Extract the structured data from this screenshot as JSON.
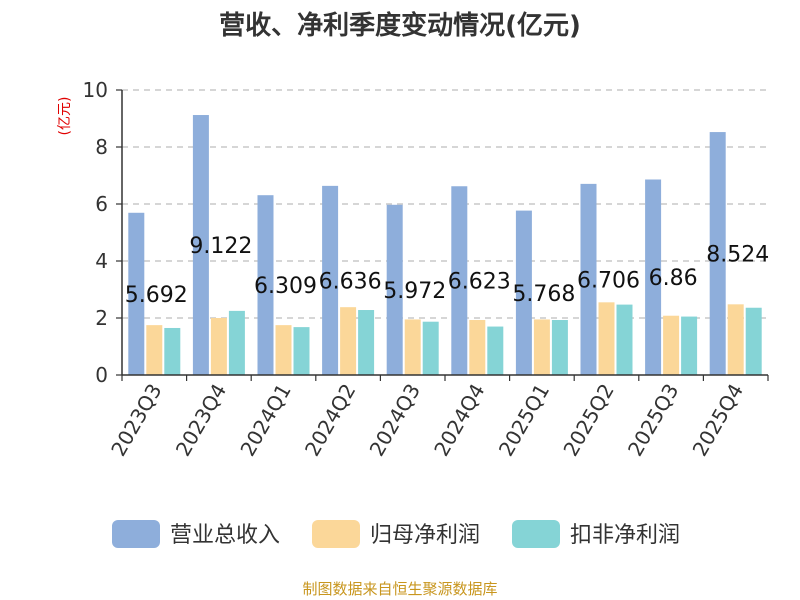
{
  "chart_data": {
    "type": "bar",
    "title": "营收、净利季度变动情况(亿元)",
    "ylabel": "(亿元)",
    "ylim": [
      0,
      10
    ],
    "yticks": [
      0,
      2,
      4,
      6,
      8,
      10
    ],
    "grid": true,
    "legend_position": "bottom",
    "categories": [
      "2023Q3",
      "2023Q4",
      "2024Q1",
      "2024Q2",
      "2024Q3",
      "2024Q4",
      "2025Q1",
      "2025Q2",
      "2025Q3",
      "2025Q4"
    ],
    "series": [
      {
        "name": "营业总收入",
        "color": "#8eaedb",
        "values": [
          5.692,
          9.122,
          6.309,
          6.636,
          5.972,
          6.623,
          5.768,
          6.706,
          6.86,
          8.524
        ],
        "data_labels": [
          "5.692",
          "9.122",
          "6.309",
          "6.636",
          "5.972",
          "6.623",
          "5.768",
          "6.706",
          "6.86",
          "8.524"
        ]
      },
      {
        "name": "归母净利润",
        "color": "#fbd799",
        "values": [
          1.75,
          2.0,
          1.75,
          2.38,
          1.95,
          1.93,
          1.95,
          2.55,
          2.08,
          2.48
        ]
      },
      {
        "name": "扣非净利润",
        "color": "#85d4d6",
        "values": [
          1.65,
          2.25,
          1.68,
          2.28,
          1.87,
          1.7,
          1.93,
          2.47,
          2.05,
          2.36
        ]
      }
    ],
    "source": "制图数据来自恒生聚源数据库"
  }
}
